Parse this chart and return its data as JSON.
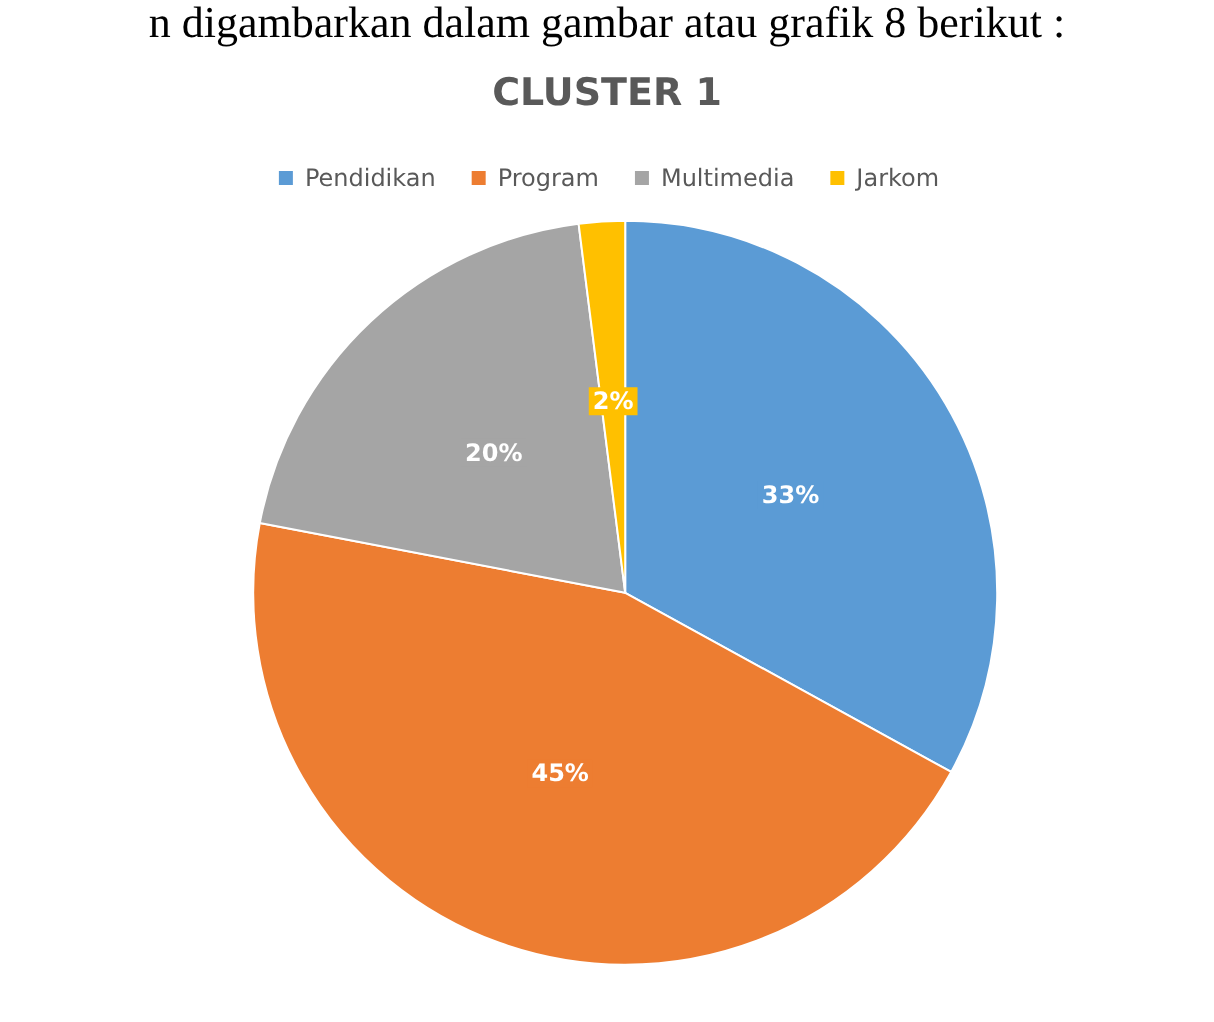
{
  "chart_data": {
    "type": "pie",
    "title": "CLUSTER 1",
    "annotations": [
      "n digambarkan dalam gambar atau grafik 8 berikut :"
    ],
    "categories": [
      "Pendidikan",
      "Program",
      "Multimedia",
      "Jarkom"
    ],
    "values": [
      33,
      45,
      20,
      2
    ],
    "value_labels": [
      "33%",
      "45%",
      "20%",
      "2%"
    ],
    "colors": [
      "#5b9bd5",
      "#ed7d31",
      "#a5a5a5",
      "#ffc000"
    ],
    "legend": "top"
  }
}
